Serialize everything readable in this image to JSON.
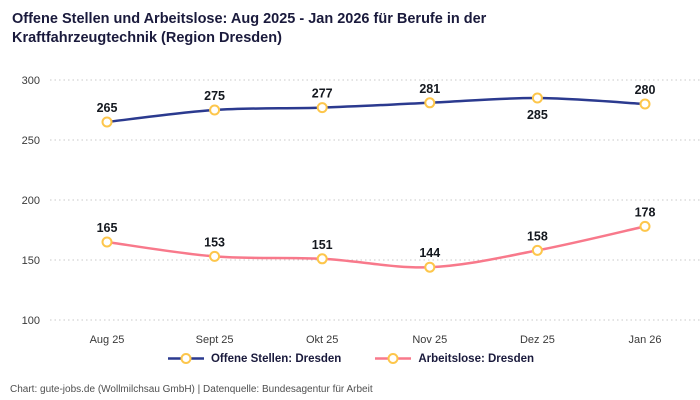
{
  "footer": "Chart: gute-jobs.de (Wollmilchsau GmbH) | Datenquelle: Bundesagentur für Arbeit",
  "chart_data": {
    "type": "line",
    "title": "Offene Stellen und Arbeitslose: Aug 2025 - Jan 2026 für Berufe in der Kraftfahrzeugtechnik (Region Dresden)",
    "categories": [
      "Aug 25",
      "Sept 25",
      "Okt 25",
      "Nov 25",
      "Dez 25",
      "Jan 26"
    ],
    "series": [
      {
        "name": "Offene Stellen: Dresden",
        "values": [
          265,
          275,
          277,
          281,
          285,
          280
        ],
        "color": "#2b3a8f",
        "label_positions": [
          "above",
          "above",
          "above",
          "above",
          "below",
          "above"
        ]
      },
      {
        "name": "Arbeitslose: Dresden",
        "values": [
          165,
          153,
          151,
          144,
          158,
          178
        ],
        "color": "#f8798b",
        "label_positions": [
          "above",
          "above",
          "above",
          "above",
          "above",
          "above"
        ]
      }
    ],
    "marker": {
      "fill": "#ffffff",
      "stroke": "#fdc64b"
    },
    "yticks": [
      100,
      150,
      200,
      250,
      300
    ],
    "ylim": [
      100,
      310
    ],
    "grid": "dotted-horizontal",
    "legend_position": "bottom"
  }
}
